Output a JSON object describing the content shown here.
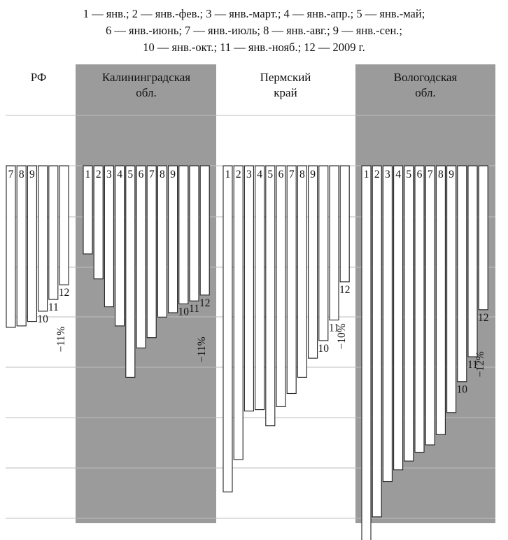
{
  "legend": {
    "line1": "1 — янв.; 2 — янв.-фев.; 3 — янв.-март.; 4 — янв.-апр.; 5 — янв.-май;",
    "line2": "6 — янв.-июнь; 7 — янв.-июль; 8 — янв.-авг.; 9 — янв.-сен.;",
    "line3": "10 — янв.-окт.; 11 — янв.-нояб.; 12 — 2009 г."
  },
  "chart_data": {
    "type": "bar",
    "orientation": "downward",
    "categories": [
      "1",
      "2",
      "3",
      "4",
      "5",
      "6",
      "7",
      "8",
      "9",
      "10",
      "11",
      "12"
    ],
    "grid": true,
    "panels": [
      {
        "title": [
          "РФ"
        ],
        "shaded": false,
        "values": [
          null,
          null,
          null,
          null,
          null,
          null,
          -11.0,
          -10.9,
          -10.6,
          -9.9,
          -9.1,
          -8.1
        ],
        "total_label": "−11%"
      },
      {
        "title": [
          "Калининградская",
          "обл."
        ],
        "shaded": true,
        "values": [
          -6.0,
          -7.7,
          -9.6,
          -10.9,
          -14.4,
          -12.4,
          -11.7,
          -10.3,
          -10.0,
          -9.4,
          -9.2,
          -8.8
        ],
        "total_label": "−11%"
      },
      {
        "title": [
          "Пермский",
          "край"
        ],
        "shaded": false,
        "values": [
          -22.2,
          -20.0,
          -16.7,
          -16.6,
          -17.7,
          -16.4,
          -15.5,
          -14.4,
          -13.1,
          -11.9,
          -10.5,
          -7.9
        ],
        "total_label": "−10%"
      },
      {
        "title": [
          "Вологодская",
          "обл."
        ],
        "shaded": true,
        "values": [
          -26.2,
          -23.9,
          -21.5,
          -20.7,
          -20.1,
          -19.5,
          -19.0,
          -18.3,
          -16.8,
          -14.7,
          -13.0,
          -9.8
        ],
        "total_label": "−12%"
      }
    ]
  }
}
